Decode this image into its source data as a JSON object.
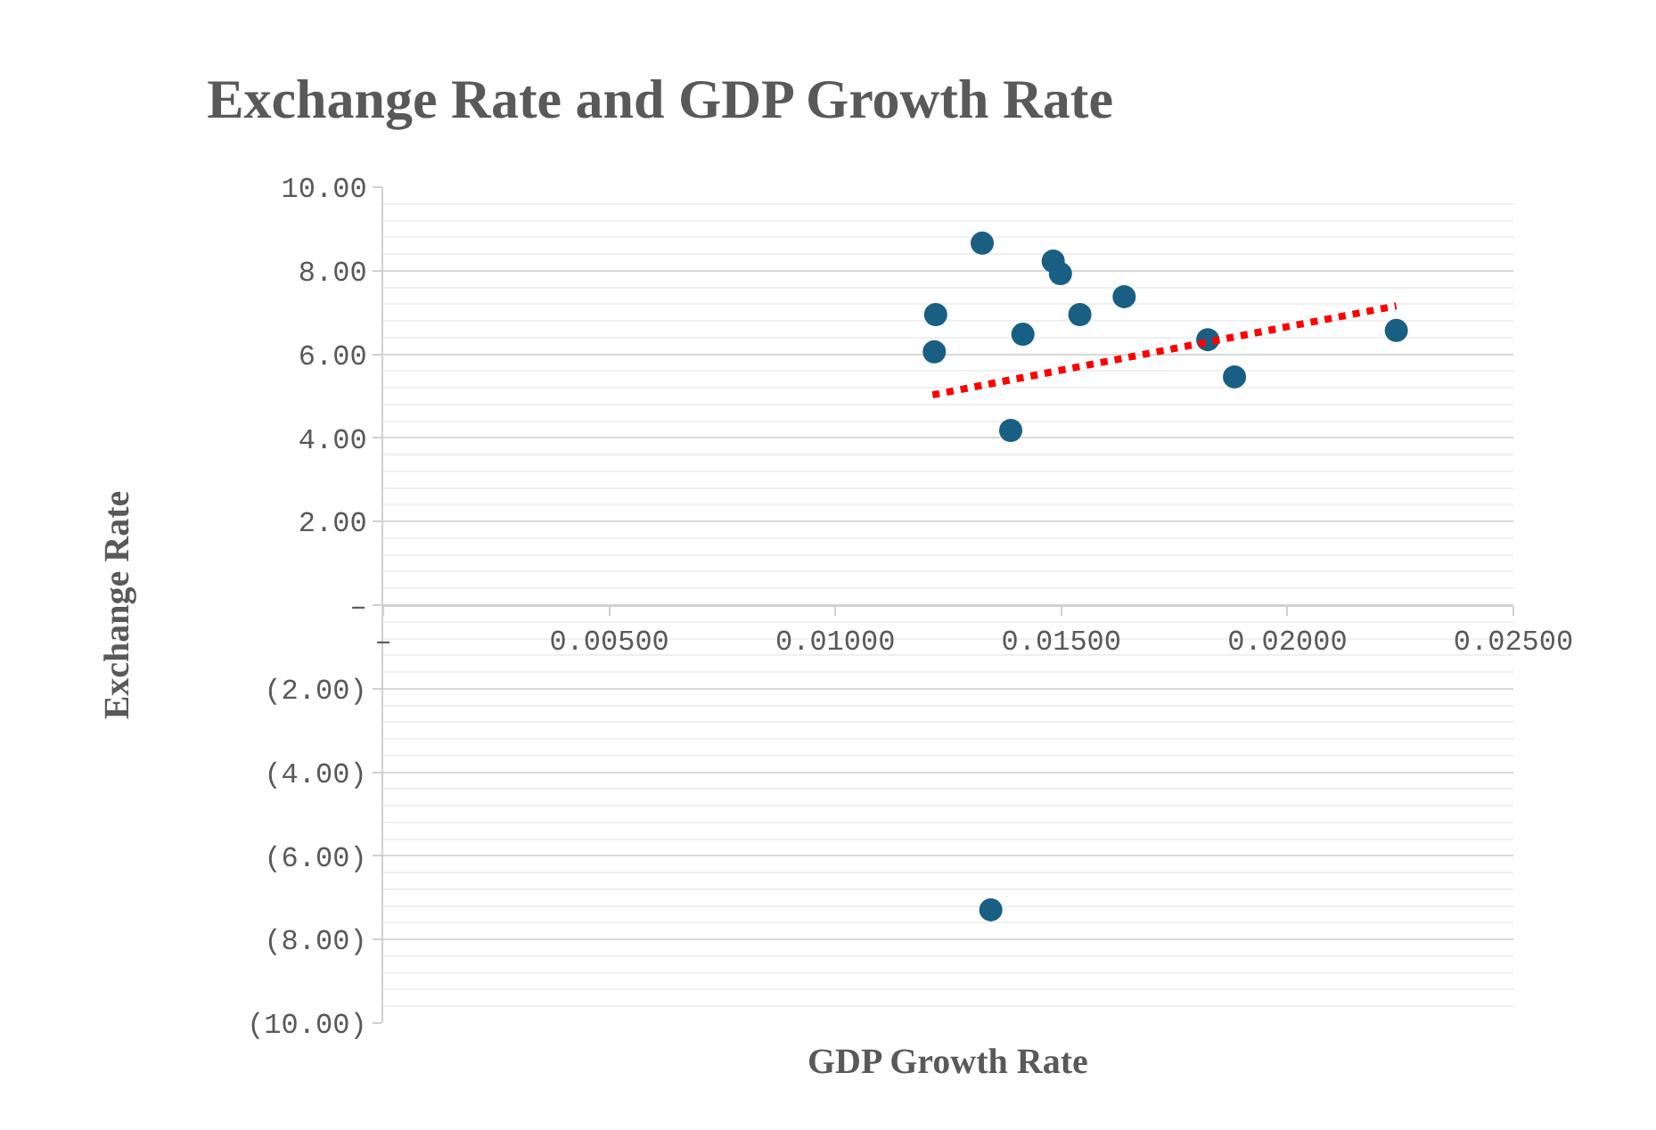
{
  "chart_data": {
    "type": "scatter",
    "title": "Exchange Rate and GDP Growth Rate",
    "xlabel": "GDP Growth Rate",
    "ylabel": "Exchange Rate",
    "series": [
      {
        "type": "scatter",
        "color": "#195f84",
        "marker": "circle",
        "x": [
          0.01222,
          0.01219,
          0.01325,
          0.01482,
          0.01498,
          0.01415,
          0.01541,
          0.01639,
          0.01388,
          0.01824,
          0.01883,
          0.02241,
          0.01344
        ],
        "values": [
          6.95,
          6.06,
          8.66,
          8.23,
          7.93,
          6.48,
          6.95,
          7.38,
          4.18,
          6.35,
          5.46,
          6.57,
          -7.29
        ]
      },
      {
        "type": "line",
        "color": "#ff0000",
        "line_style": "dotted",
        "x": [
          0.01215,
          0.02241
        ],
        "values": [
          5.03,
          7.16
        ]
      }
    ],
    "xlim": [
      0,
      0.025
    ],
    "xticks": [
      {
        "value": 0,
        "label": "–"
      },
      {
        "value": 0.005,
        "label": "0.00500"
      },
      {
        "value": 0.01,
        "label": "0.01000"
      },
      {
        "value": 0.015,
        "label": "0.01500"
      },
      {
        "value": 0.02,
        "label": "0.02000"
      },
      {
        "value": 0.025,
        "label": "0.02500"
      }
    ],
    "ylim": [
      -10,
      10
    ],
    "yticks": [
      {
        "value": -10,
        "label": "(10.00)"
      },
      {
        "value": -8,
        "label": "(8.00)"
      },
      {
        "value": -6,
        "label": "(6.00)"
      },
      {
        "value": -4,
        "label": "(4.00)"
      },
      {
        "value": -2,
        "label": "(2.00)"
      },
      {
        "value": 0,
        "label": "–"
      },
      {
        "value": 2,
        "label": "2.00"
      },
      {
        "value": 4,
        "label": "4.00"
      },
      {
        "value": 6,
        "label": "6.00"
      },
      {
        "value": 8,
        "label": "8.00"
      },
      {
        "value": 10,
        "label": "10.00"
      }
    ],
    "grid": "y",
    "legend": false
  }
}
